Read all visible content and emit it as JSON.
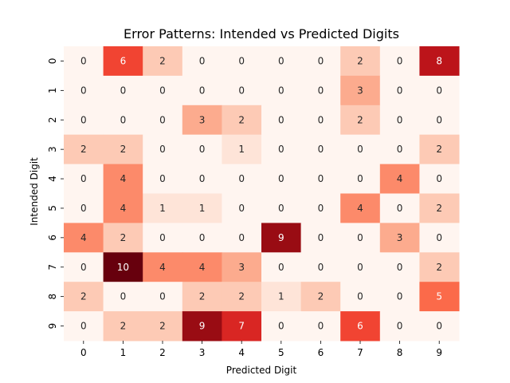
{
  "chart_data": {
    "type": "heatmap",
    "title": "Error Patterns: Intended vs Predicted Digits",
    "xlabel": "Predicted Digit",
    "ylabel": "Intended Digit",
    "x_categories": [
      "0",
      "1",
      "2",
      "3",
      "4",
      "5",
      "6",
      "7",
      "8",
      "9"
    ],
    "y_categories": [
      "0",
      "1",
      "2",
      "3",
      "4",
      "5",
      "6",
      "7",
      "8",
      "9"
    ],
    "values": [
      [
        0,
        6,
        2,
        0,
        0,
        0,
        0,
        2,
        0,
        8
      ],
      [
        0,
        0,
        0,
        0,
        0,
        0,
        0,
        3,
        0,
        0
      ],
      [
        0,
        0,
        0,
        3,
        2,
        0,
        0,
        2,
        0,
        0
      ],
      [
        2,
        2,
        0,
        0,
        1,
        0,
        0,
        0,
        0,
        2
      ],
      [
        0,
        4,
        0,
        0,
        0,
        0,
        0,
        0,
        4,
        0
      ],
      [
        0,
        4,
        1,
        1,
        0,
        0,
        0,
        4,
        0,
        2
      ],
      [
        4,
        2,
        0,
        0,
        0,
        9,
        0,
        0,
        3,
        0
      ],
      [
        0,
        10,
        4,
        4,
        3,
        0,
        0,
        0,
        0,
        2
      ],
      [
        2,
        0,
        0,
        2,
        2,
        1,
        2,
        0,
        0,
        5
      ],
      [
        0,
        2,
        2,
        9,
        7,
        0,
        0,
        6,
        0,
        0
      ]
    ],
    "vmin": 0,
    "vmax": 10,
    "colormap": "Reds",
    "annotations": true,
    "colorbar": false,
    "grid": false
  }
}
